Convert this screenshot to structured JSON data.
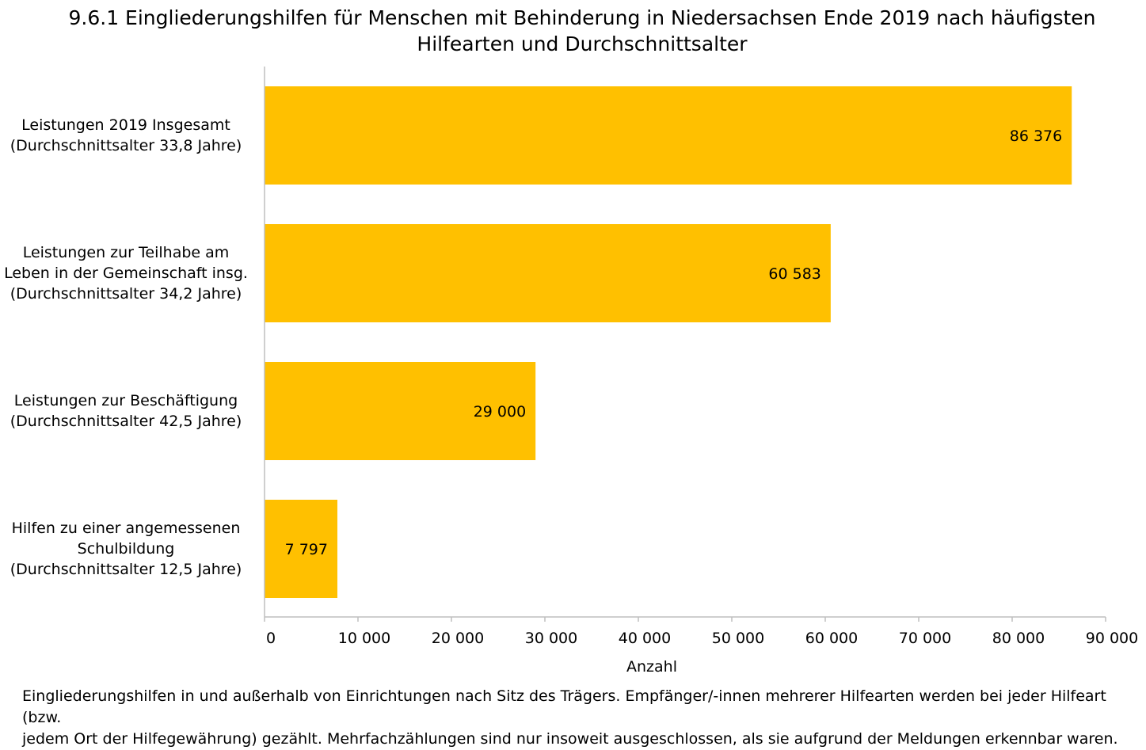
{
  "title_lines": [
    "9.6.1 Eingliederungshilfen für Menschen mit Behinderung in Niedersachsen Ende 2019 nach häufigsten",
    "Hilfearten und Durchschnittsalter"
  ],
  "chart_data": {
    "type": "bar",
    "orientation": "horizontal",
    "categories": [
      [
        "Leistungen 2019 Insgesamt",
        "(Durchschnittsalter 33,8 Jahre)"
      ],
      [
        "Leistungen zur Teilhabe am",
        "Leben in der Gemeinschaft insg.",
        "(Durchschnittsalter 34,2 Jahre)"
      ],
      [
        "Leistungen zur Beschäftigung",
        "(Durchschnittsalter 42,5 Jahre)"
      ],
      [
        "Hilfen zu einer angemessenen",
        "Schulbildung",
        "(Durchschnittsalter 12,5 Jahre)"
      ]
    ],
    "values": [
      86376,
      60583,
      29000,
      7797
    ],
    "value_labels": [
      "86 376",
      "60 583",
      "29 000",
      "7 797"
    ],
    "xlabel": "Anzahl",
    "xlim": [
      0,
      90000
    ],
    "ticks": [
      0,
      10000,
      20000,
      30000,
      40000,
      50000,
      60000,
      70000,
      80000,
      90000
    ],
    "tick_labels": [
      "0",
      "10 000",
      "20 000",
      "30 000",
      "40 000",
      "50 000",
      "60 000",
      "70 000",
      "80 000",
      "90 000"
    ],
    "grid": false,
    "bar_color": "#FFC000",
    "axis_color": "#BFBFBF"
  },
  "footnote_lines": [
    "Eingliederungshilfen in und außerhalb von Einrichtungen nach Sitz des Trägers. Empfänger/-innen mehrerer Hilfearten werden bei jeder Hilfeart (bzw.",
    "jedem Ort der Hilfegewährung) gezählt. Mehrfachzählungen sind nur insoweit ausgeschlossen, als sie aufgrund der Meldungen erkennbar waren."
  ]
}
